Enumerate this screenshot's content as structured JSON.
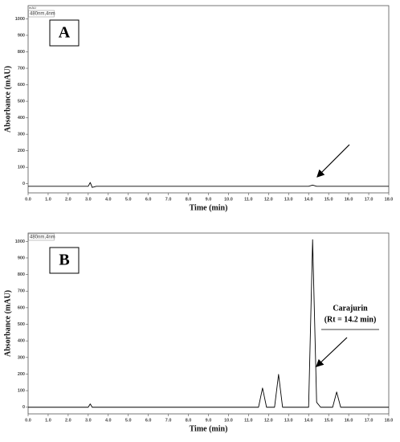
{
  "chart_data": [
    {
      "type": "line",
      "panel_label": "A",
      "y_unit_label": "mAU",
      "channel_label": "480nm,4nm",
      "xlabel": "Time (min)",
      "ylabel": "Absorbance (mAU)",
      "xlim": [
        0,
        18
      ],
      "ylim": [
        -55,
        1080
      ],
      "xticks": [
        {
          "value": 0,
          "label": "0.0"
        },
        {
          "value": 1,
          "label": "1.0"
        },
        {
          "value": 2,
          "label": "2.0"
        },
        {
          "value": 3,
          "label": "3.0"
        },
        {
          "value": 4,
          "label": "4.0"
        },
        {
          "value": 5,
          "label": "5.0"
        },
        {
          "value": 6,
          "label": "6.0"
        },
        {
          "value": 7,
          "label": "7.0"
        },
        {
          "value": 8,
          "label": "8.0"
        },
        {
          "value": 9,
          "label": "9.0"
        },
        {
          "value": 10,
          "label": "10.0"
        },
        {
          "value": 11,
          "label": "11.0"
        },
        {
          "value": 12,
          "label": "12.0"
        },
        {
          "value": 13,
          "label": "13.0"
        },
        {
          "value": 14,
          "label": "14.0"
        },
        {
          "value": 15,
          "label": "15.0"
        },
        {
          "value": 16,
          "label": "16.0"
        },
        {
          "value": 17,
          "label": "17.0"
        },
        {
          "value": 18,
          "label": "18.0"
        }
      ],
      "yticks": [
        0,
        100,
        200,
        300,
        400,
        500,
        600,
        700,
        800,
        900,
        1000
      ],
      "x": [
        0,
        3.0,
        3.1,
        3.2,
        3.4,
        14.0,
        14.2,
        14.4,
        18
      ],
      "series": [
        {
          "color": "#000000",
          "values": [
            -15,
            -15,
            8,
            -22,
            -15,
            -15,
            -8,
            -15,
            -15
          ]
        }
      ]
    },
    {
      "type": "line",
      "panel_label": "B",
      "channel_label": "480nm,4nm",
      "xlabel": "Time (min)",
      "ylabel": "Absorbance (mAU)",
      "annotations": [
        "Carajurin",
        "(Rt = 14.2 min)"
      ],
      "xlim": [
        0,
        18
      ],
      "ylim": [
        -40,
        1050
      ],
      "xticks": [
        {
          "value": 0,
          "label": "0.0"
        },
        {
          "value": 1,
          "label": "1.0"
        },
        {
          "value": 2,
          "label": "2.0"
        },
        {
          "value": 3,
          "label": "3.0"
        },
        {
          "value": 4,
          "label": "4.0"
        },
        {
          "value": 5,
          "label": "5.0"
        },
        {
          "value": 6,
          "label": "6.0"
        },
        {
          "value": 7,
          "label": "7.0"
        },
        {
          "value": 8,
          "label": "8.0"
        },
        {
          "value": 9,
          "label": "9.0"
        },
        {
          "value": 10,
          "label": "10.0"
        },
        {
          "value": 11,
          "label": "11.0"
        },
        {
          "value": 12,
          "label": "12.0"
        },
        {
          "value": 13,
          "label": "13.0"
        },
        {
          "value": 14,
          "label": "14.0"
        },
        {
          "value": 15,
          "label": "15.0"
        },
        {
          "value": 16,
          "label": "16.0"
        },
        {
          "value": 17,
          "label": "17.0"
        },
        {
          "value": 18,
          "label": "18.0"
        }
      ],
      "yticks": [
        0,
        100,
        200,
        300,
        400,
        500,
        600,
        700,
        800,
        900,
        1000
      ],
      "x": [
        0,
        3.0,
        3.1,
        3.2,
        4.7,
        11.5,
        11.7,
        11.9,
        12.3,
        12.5,
        12.7,
        14.0,
        14.2,
        14.4,
        14.6,
        15.2,
        15.4,
        15.6,
        18
      ],
      "series": [
        {
          "color": "#000000",
          "values": [
            0,
            0,
            20,
            0,
            0,
            0,
            116,
            0,
            0,
            198,
            0,
            0,
            1010,
            30,
            0,
            0,
            92,
            0,
            0
          ]
        }
      ]
    }
  ]
}
